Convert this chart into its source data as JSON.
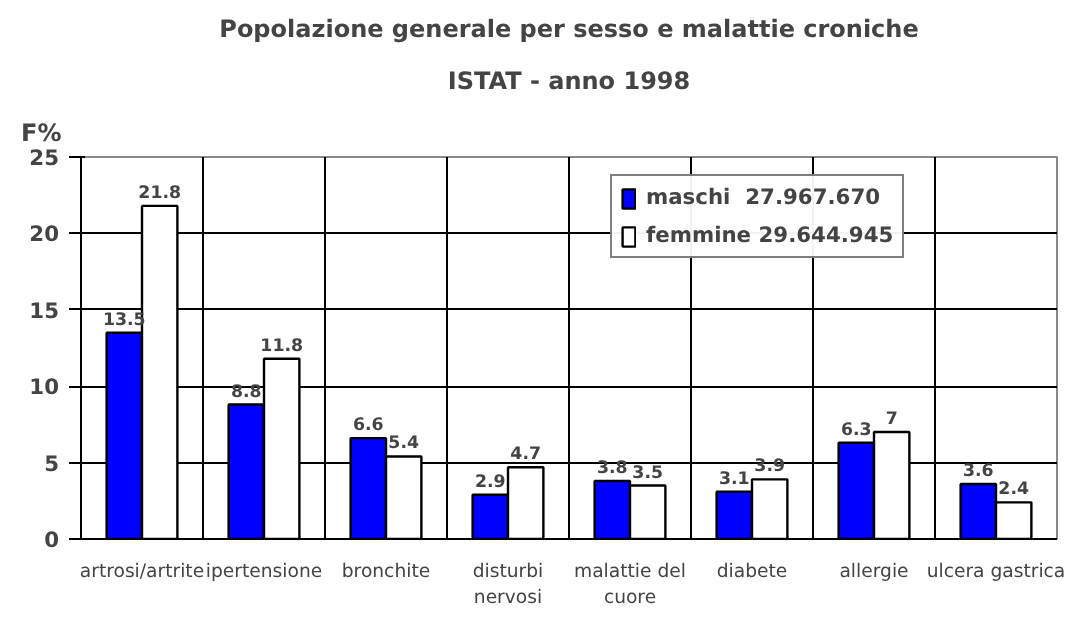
{
  "chart_data": {
    "type": "bar",
    "title": "Popolazione generale per sesso e malattie croniche",
    "subtitle": "ISTAT - anno 1998",
    "ylabel": "F%",
    "categories": [
      "artrosi/artrite",
      "ipertensione",
      "bronchite",
      "disturbi nervosi",
      "malattie del cuore",
      "diabete",
      "allergie",
      "ulcera gastrica"
    ],
    "series": [
      {
        "name": "maschi  27.967.670",
        "color": "#0000ff",
        "values": [
          13.5,
          8.8,
          6.6,
          2.9,
          3.8,
          3.1,
          6.3,
          3.6
        ]
      },
      {
        "name": "femmine 29.644.945",
        "color": "#ffffff",
        "values": [
          21.8,
          11.8,
          5.4,
          4.7,
          3.5,
          3.9,
          7,
          2.4
        ]
      }
    ],
    "ylim": [
      0,
      25
    ],
    "yticks": [
      0,
      5,
      10,
      15,
      20,
      25
    ],
    "grid": true,
    "legend": "top right",
    "data_labels": true
  }
}
